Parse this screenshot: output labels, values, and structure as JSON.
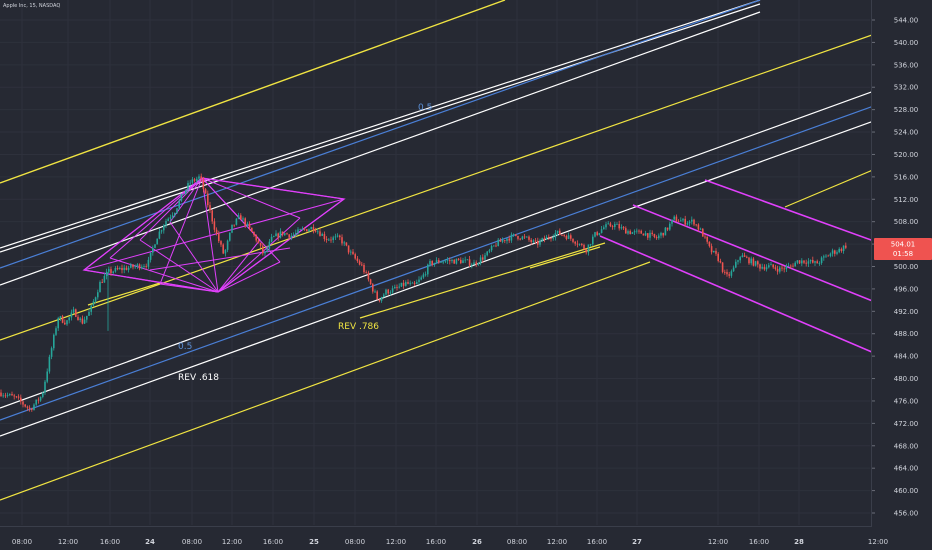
{
  "header": {
    "title": "Apple Inc, 15, NASDAQ"
  },
  "chart_data": {
    "type": "candlestick",
    "title": "Apple Inc, 15, NASDAQ",
    "ylim": [
      452,
      548
    ],
    "y_ticks": [
      456,
      460,
      464,
      468,
      472,
      476,
      480,
      484,
      488,
      492,
      496,
      500,
      504,
      508,
      512,
      516,
      520,
      524,
      528,
      532,
      536,
      540,
      544
    ],
    "x_ticks": [
      "08:00",
      "12:00",
      "16:00",
      "24",
      "08:00",
      "12:00",
      "16:00",
      "25",
      "08:00",
      "12:00",
      "16:00",
      "26",
      "08:00",
      "12:00",
      "16:00",
      "27",
      "12:00",
      "16:00",
      "28",
      "12:00"
    ],
    "last_price": {
      "value": "504.01",
      "countdown": "01:58",
      "color": "#ef5350"
    },
    "annotations": [
      {
        "text": "0.5",
        "color": "#5b8fd6"
      },
      {
        "text": "0.5",
        "color": "#5b8fd6"
      },
      {
        "text": "REV .618",
        "color": "#ffffff"
      },
      {
        "text": "REV .786",
        "color": "#f0e442"
      }
    ],
    "colors": {
      "up": "#26a69a",
      "down": "#ef5350",
      "yellow": "#f0e442",
      "white": "#ffffff",
      "blue": "#4a7fd6",
      "magenta": "#e040fb",
      "background": "#262933"
    },
    "price_path": [
      [
        0,
        477.5
      ],
      [
        16,
        476.5
      ],
      [
        30,
        474.5
      ],
      [
        42,
        477
      ],
      [
        50,
        484
      ],
      [
        58,
        491
      ],
      [
        66,
        490
      ],
      [
        74,
        492
      ],
      [
        82,
        490
      ],
      [
        90,
        492
      ],
      [
        100,
        497
      ],
      [
        108,
        499
      ],
      [
        120,
        499.5
      ],
      [
        135,
        500
      ],
      [
        148,
        500.5
      ],
      [
        156,
        505
      ],
      [
        165,
        508
      ],
      [
        175,
        510
      ],
      [
        183,
        513
      ],
      [
        190,
        515
      ],
      [
        200,
        516
      ],
      [
        208,
        511
      ],
      [
        216,
        506
      ],
      [
        224,
        502
      ],
      [
        232,
        507
      ],
      [
        240,
        509
      ],
      [
        248,
        507
      ],
      [
        256,
        505
      ],
      [
        264,
        502
      ],
      [
        272,
        505
      ],
      [
        282,
        506
      ],
      [
        292,
        505.5
      ],
      [
        302,
        506.5
      ],
      [
        314,
        507
      ],
      [
        326,
        505
      ],
      [
        340,
        505
      ],
      [
        352,
        502
      ],
      [
        362,
        500
      ],
      [
        370,
        497
      ],
      [
        378,
        494
      ],
      [
        386,
        495.5
      ],
      [
        396,
        496
      ],
      [
        406,
        497
      ],
      [
        414,
        496.5
      ],
      [
        422,
        498
      ],
      [
        430,
        500.5
      ],
      [
        440,
        501
      ],
      [
        450,
        501
      ],
      [
        462,
        501
      ],
      [
        474,
        500.5
      ],
      [
        486,
        502
      ],
      [
        496,
        504
      ],
      [
        506,
        505
      ],
      [
        516,
        505.5
      ],
      [
        526,
        505
      ],
      [
        536,
        504
      ],
      [
        546,
        505
      ],
      [
        556,
        506
      ],
      [
        566,
        505.5
      ],
      [
        576,
        504.5
      ],
      [
        586,
        503
      ],
      [
        594,
        505.5
      ],
      [
        604,
        507
      ],
      [
        614,
        507.5
      ],
      [
        624,
        506.5
      ],
      [
        634,
        506
      ],
      [
        644,
        506
      ],
      [
        656,
        505
      ],
      [
        666,
        506.5
      ],
      [
        674,
        508.5
      ],
      [
        684,
        508
      ],
      [
        694,
        508
      ],
      [
        702,
        506
      ],
      [
        710,
        503
      ],
      [
        718,
        501.5
      ],
      [
        726,
        498
      ],
      [
        732,
        499
      ],
      [
        740,
        502
      ],
      [
        750,
        501
      ],
      [
        760,
        500
      ],
      [
        770,
        500
      ],
      [
        780,
        499.5
      ],
      [
        790,
        500
      ],
      [
        798,
        501
      ],
      [
        806,
        501
      ],
      [
        816,
        500.5
      ],
      [
        824,
        501.5
      ],
      [
        832,
        502.5
      ],
      [
        840,
        503
      ],
      [
        848,
        504.01
      ]
    ]
  }
}
